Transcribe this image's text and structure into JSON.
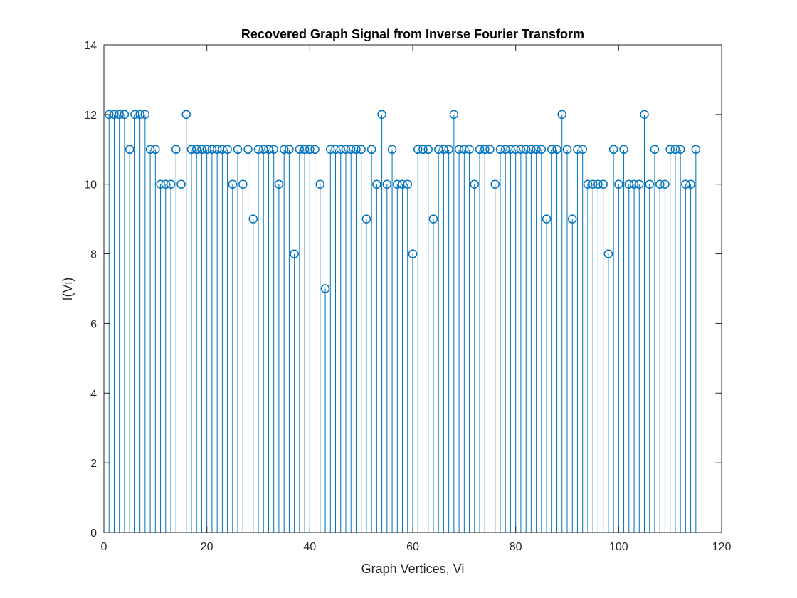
{
  "chart_data": {
    "type": "stem",
    "title": "Recovered Graph Signal from Inverse Fourier Transform",
    "xlabel": "Graph Vertices, Vi",
    "ylabel": "f(Vi)",
    "xlim": [
      0,
      120
    ],
    "ylim": [
      0,
      14
    ],
    "xticks": [
      0,
      20,
      40,
      60,
      80,
      100,
      120
    ],
    "yticks": [
      0,
      2,
      4,
      6,
      8,
      10,
      12,
      14
    ],
    "grid": false,
    "box": true,
    "marker": "circle",
    "color": "#0072BD",
    "x_start": 1,
    "values": [
      12,
      12,
      12,
      12,
      11,
      12,
      12,
      12,
      11,
      11,
      10,
      10,
      10,
      11,
      10,
      12,
      11,
      11,
      11,
      11,
      11,
      11,
      11,
      11,
      10,
      11,
      10,
      11,
      9,
      11,
      11,
      11,
      11,
      10,
      11,
      11,
      8,
      11,
      11,
      11,
      11,
      10,
      7,
      11,
      11,
      11,
      11,
      11,
      11,
      11,
      9,
      11,
      10,
      12,
      10,
      11,
      10,
      10,
      10,
      8,
      11,
      11,
      11,
      9,
      11,
      11,
      11,
      12,
      11,
      11,
      11,
      10,
      11,
      11,
      11,
      10,
      11,
      11,
      11,
      11,
      11,
      11,
      11,
      11,
      11,
      9,
      11,
      11,
      12,
      11,
      9,
      11,
      11,
      10,
      10,
      10,
      10,
      8,
      11,
      10,
      11,
      10,
      10,
      10,
      12,
      10,
      11,
      10,
      10,
      11,
      11,
      11,
      10,
      10,
      11
    ]
  }
}
